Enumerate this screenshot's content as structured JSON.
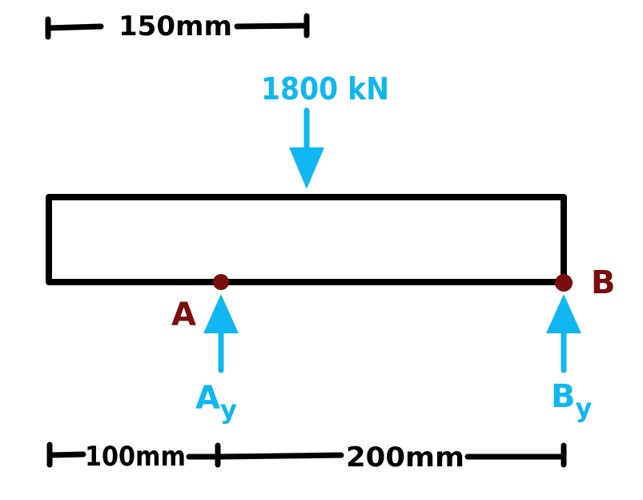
{
  "colors": {
    "ink": "#000000",
    "force": "#10b7f0",
    "support": "#7a0d0d"
  },
  "top_dimension": {
    "label": "150mm"
  },
  "applied_load": {
    "label": "1800 kN"
  },
  "support_a": {
    "label": "A",
    "reaction_main": "A",
    "reaction_sub": "y"
  },
  "support_b": {
    "label": "B",
    "reaction_main": "B",
    "reaction_sub": "y"
  },
  "bottom_dimensions": {
    "left_label": "100mm",
    "right_label": "200mm"
  }
}
